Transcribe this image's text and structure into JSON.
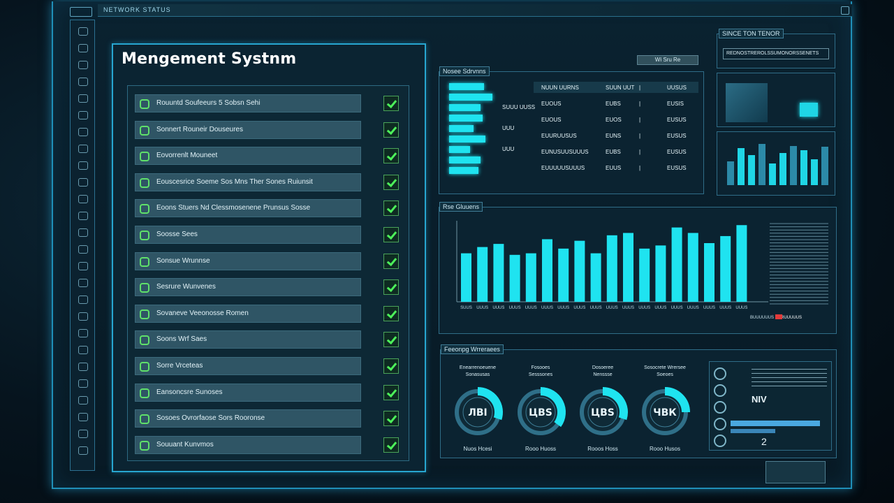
{
  "app": {
    "title": "Mengement Systnm",
    "top_tag": "NETWORK STATUS"
  },
  "colors": {
    "accent": "#1fe3f0",
    "check": "#4cf05a",
    "frame": "#27a6d0"
  },
  "items": [
    {
      "label": "Rouuntd Soufeeurs 5 Sobsn Sehi"
    },
    {
      "label": "Sonnert Rouneir Douseures"
    },
    {
      "label": "Eovorrenlt Mouneet"
    },
    {
      "label": "Eouscesrice Soeme Sos Mns Ther Sones Ruiunsit"
    },
    {
      "label": "Eoons Stuers Nd Clessmosenene Prunsus Sosse"
    },
    {
      "label": "Soosse Sees"
    },
    {
      "label": "Sonsue Wrunnse"
    },
    {
      "label": "Sesrure Wunvenes"
    },
    {
      "label": "Sovaneve Veeonosse Romen"
    },
    {
      "label": "Soons Wrf Saes"
    },
    {
      "label": "Sorre Vrceteas"
    },
    {
      "label": "Eansoncsre Sunoses"
    },
    {
      "label": "Sosoes Ovrorfaose Sors Rooronse"
    },
    {
      "label": "Souuant Kunvmos"
    }
  ],
  "top_panel": {
    "tag": "Nosee Sdrvnns",
    "button": "Wi Sru Re",
    "rows": [
      {
        "a": "NUUN UURNS",
        "b": "SUUN UUT",
        "c": "UUSUS"
      },
      {
        "a": "EUOUS",
        "b": "EUBS",
        "c": "EUSIS"
      },
      {
        "a": "EUOUS",
        "b": "EUOS",
        "c": "EUSUS"
      },
      {
        "a": "EUURUUSUS",
        "b": "EUNS",
        "c": "EUSUS"
      },
      {
        "a": "EUNUSUUSUUUS",
        "b": "EUBS",
        "c": "EUSUS"
      },
      {
        "a": "EUUUUUSUUUS",
        "b": "EUUS",
        "c": "EUSUS"
      }
    ],
    "bars": [
      0.5,
      0.62,
      0.45,
      0.48,
      0.35,
      0.52,
      0.3,
      0.45,
      0.42
    ],
    "bar_notes": [
      "",
      "",
      "SUUU UUSS",
      "",
      "UUU",
      "",
      "UUU",
      "",
      ""
    ]
  },
  "chart_panel": {
    "tag": "Rse Gluuens",
    "chart_data": {
      "type": "bar",
      "categories": [
        "SUUS",
        "UUUS",
        "UUUS",
        "UUUS",
        "UUUS",
        "UUUS",
        "UUUS",
        "UUUS",
        "UUUS",
        "UUUS",
        "UUUS",
        "UUUS",
        "UUUS",
        "UUUS",
        "UUUS",
        "UUUS",
        "UUUS",
        "UUUS"
      ],
      "values": [
        0.62,
        0.7,
        0.74,
        0.6,
        0.62,
        0.8,
        0.68,
        0.78,
        0.62,
        0.85,
        0.88,
        0.68,
        0.72,
        0.95,
        0.88,
        0.75,
        0.84,
        0.98
      ],
      "legend": [
        "BUUUUUUS",
        "RUUUUUS"
      ]
    }
  },
  "gauge_panel": {
    "tag": "Feeonpg Wrreraees",
    "gauges": [
      {
        "title": "Enearrenoeuene Sonasusas",
        "value": "ЛВI",
        "foot": "Nuos Hcesi",
        "fill": 0.3
      },
      {
        "title": "Fosooes Sesssones",
        "value": "ЦВS",
        "foot": "Rooo Huoss",
        "fill": 0.35
      },
      {
        "title": "Dosoeree Nenssse",
        "value": "ЦВS",
        "foot": "Rooos Hoss",
        "fill": 0.3
      },
      {
        "title": "Sosocrete Wrersee Soeoes",
        "value": "ЧВК",
        "foot": "Rooo Husos",
        "fill": 0.25
      }
    ],
    "side_value": "NIV",
    "side_digit": "2"
  },
  "mini_panels": {
    "tag": "SINCE TON TENOR",
    "header_text": "REDNOSTREROLSSUMONORSSENETS"
  }
}
